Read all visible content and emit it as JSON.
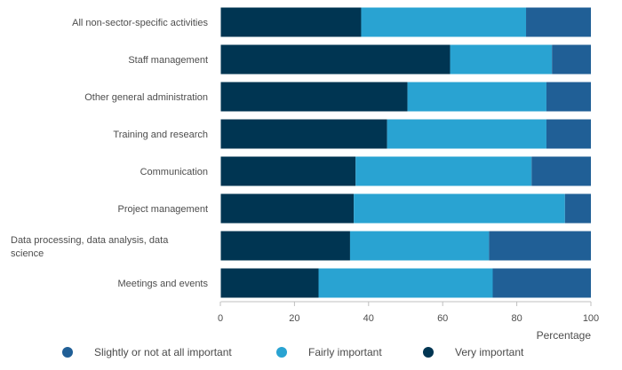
{
  "chart_data": {
    "type": "bar",
    "orientation": "horizontal",
    "stacked": true,
    "categories": [
      "All non-sector-specific activities",
      "Staff management",
      "Other general administration",
      "Training and research",
      "Communication",
      "Project management",
      "Data processing, data analysis, data science",
      "Meetings and events"
    ],
    "series": [
      {
        "name": "Very important",
        "color": "#003552",
        "values": [
          38,
          62,
          50.5,
          45,
          36.5,
          36,
          35,
          26.5
        ]
      },
      {
        "name": "Fairly important",
        "color": "#29a3d2",
        "values": [
          44.5,
          27.5,
          37.5,
          43,
          47.5,
          57,
          37.5,
          47
        ]
      },
      {
        "name": "Slightly or not at all important",
        "color": "#205f96",
        "values": [
          17.5,
          10.5,
          12,
          12,
          16,
          7,
          27.5,
          26.5
        ]
      }
    ],
    "xlabel": "Percentage",
    "xlim": [
      0,
      100
    ],
    "xticks": [
      0,
      20,
      40,
      60,
      80,
      100
    ],
    "legend_position": "bottom",
    "legend_order": [
      "Slightly or not at all important",
      "Fairly important",
      "Very important"
    ]
  }
}
